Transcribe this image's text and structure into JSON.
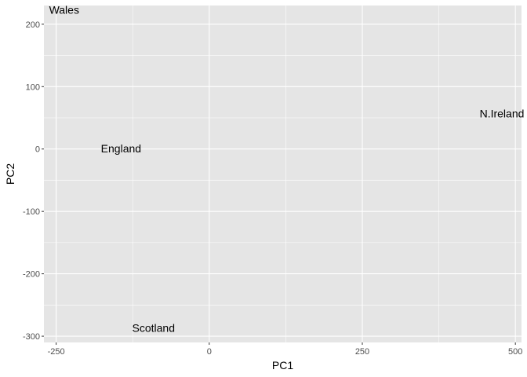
{
  "chart_data": {
    "type": "scatter",
    "title": "",
    "xlabel": "PC1",
    "ylabel": "PC2",
    "xlim": [
      -270,
      510
    ],
    "ylim": [
      -310,
      230
    ],
    "xticks": [
      -250,
      0,
      250,
      500
    ],
    "xtick_labels": [
      "-250",
      "0",
      "250",
      "500"
    ],
    "yticks": [
      200,
      100,
      0,
      -100,
      -200,
      -300
    ],
    "ytick_labels": [
      "200",
      "100",
      "0",
      "-100",
      "-200",
      "-300"
    ],
    "grid": true,
    "points": [
      {
        "label": "Wales",
        "x": -237,
        "y": 223
      },
      {
        "label": "England",
        "x": -144,
        "y": 1
      },
      {
        "label": "Scotland",
        "x": -91,
        "y": -287
      },
      {
        "label": "N.Ireland",
        "x": 478,
        "y": 57
      }
    ],
    "colors": {
      "panel_background": "#e5e5e5",
      "grid": "#ffffff",
      "text": "#000000",
      "tick_text": "#4d4d4d"
    }
  }
}
